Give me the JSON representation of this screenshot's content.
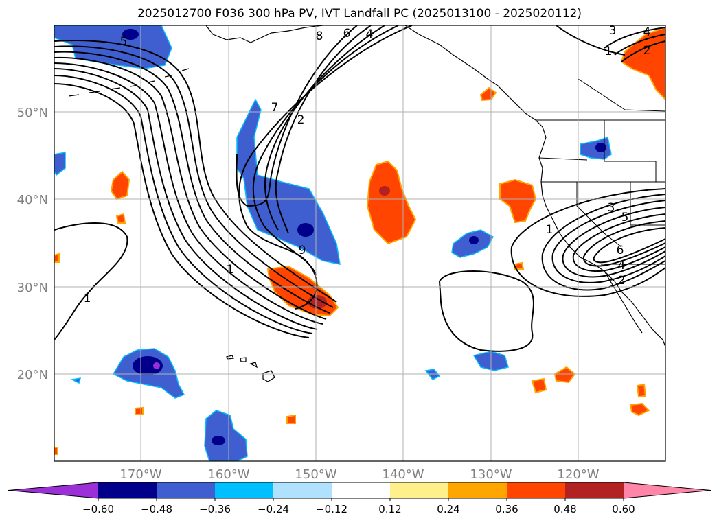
{
  "title": "2025012700 F036 300 hPa PV, IVT Landfall PC (2025013100 - 2025020112)",
  "lat_labels": [
    "50°N",
    "40°N",
    "30°N",
    "20°N"
  ],
  "lon_labels": [
    "170°W",
    "160°W",
    "150°W",
    "140°W",
    "130°W",
    "120°W"
  ],
  "colorbar": {
    "colors": [
      "#9b30d9",
      "#00008b",
      "#3f5fd0",
      "#00bfff",
      "#b0e2ff",
      "#ffffff",
      "#fff08c",
      "#ffa500",
      "#ff4500",
      "#b22222",
      "#ff85a9"
    ],
    "ticks": [
      "−0.60",
      "−0.48",
      "−0.36",
      "−0.24",
      "−0.12",
      "0.12",
      "0.24",
      "0.36",
      "0.48",
      "0.60"
    ]
  },
  "contour_labels": [
    "5",
    "8",
    "6",
    "4",
    "7",
    "2",
    "1",
    "9",
    "1",
    "3",
    "2",
    "4",
    "1",
    "3",
    "5",
    "6",
    "4",
    "2",
    "1"
  ],
  "colors": {
    "land_line": "#000000",
    "grid": "#b0b0b0",
    "neg_fill": "#3f5fd0",
    "neg_core": "#00008b",
    "pos_fill": "#ff4500",
    "pos_core": "#b22222",
    "pos_edge": "#ffa500"
  }
}
